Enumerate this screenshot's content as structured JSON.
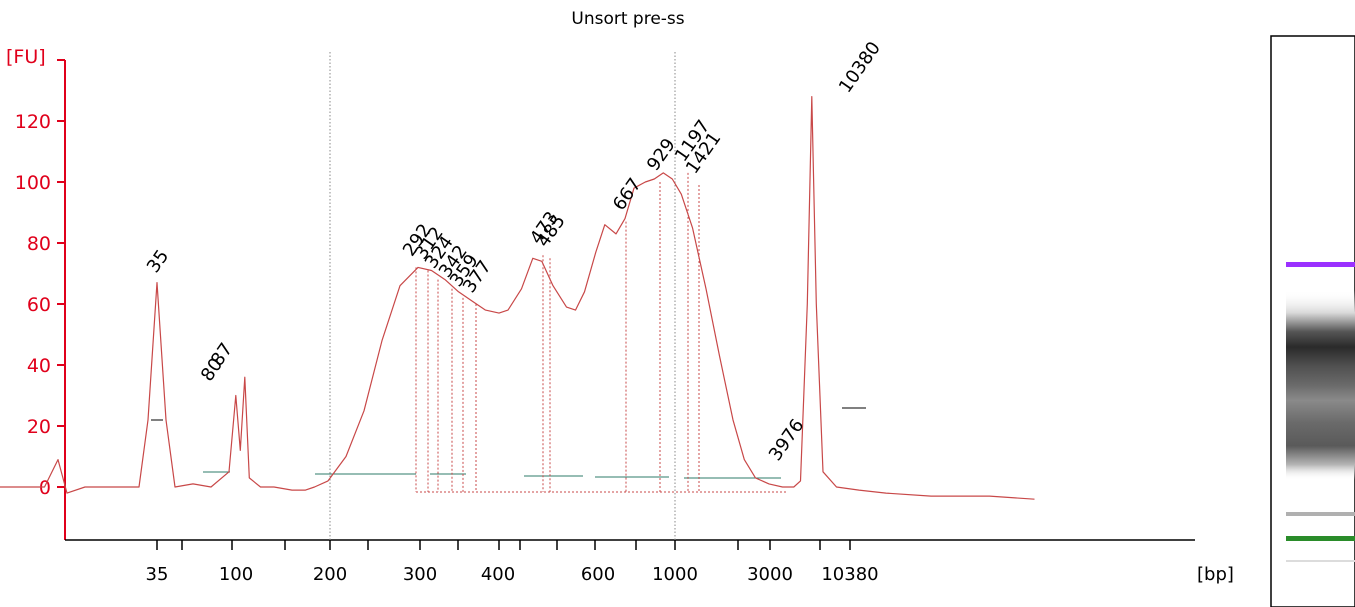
{
  "chart_data": {
    "type": "line",
    "title": "Unsort pre-ss",
    "ylabel": "[FU]",
    "xlabel": "[bp]",
    "ylim": [
      -18,
      142
    ],
    "yticks": [
      0,
      20,
      40,
      60,
      80,
      100,
      120
    ],
    "xtick_labels": [
      "35",
      "100",
      "200",
      "300",
      "400",
      "600",
      "1000",
      "3000",
      "10380"
    ],
    "minor_tick_labels": [],
    "x_axis_position": [
      35,
      15,
      31,
      40,
      50,
      60,
      72,
      82,
      92,
      105,
      115,
      125,
      135,
      145,
      155,
      165,
      180,
      195
    ],
    "peak_labels": [
      {
        "label": "35",
        "size": 35,
        "fu": 67,
        "color": "#1e8c1e"
      },
      {
        "label": "80",
        "size": 80,
        "fu": 31,
        "color": "#000000"
      },
      {
        "label": "87",
        "size": 87,
        "fu": 36,
        "color": "#000000"
      },
      {
        "label": "292",
        "size": 292,
        "fu": 72,
        "color": "#000000"
      },
      {
        "label": "312",
        "size": 312,
        "fu": 71,
        "color": "#000000"
      },
      {
        "label": "324",
        "size": 324,
        "fu": 68,
        "color": "#000000"
      },
      {
        "label": "342",
        "size": 342,
        "fu": 65,
        "color": "#000000"
      },
      {
        "label": "359",
        "size": 359,
        "fu": 62,
        "color": "#000000"
      },
      {
        "label": "377",
        "size": 377,
        "fu": 60,
        "color": "#000000"
      },
      {
        "label": "473",
        "size": 473,
        "fu": 76,
        "color": "#000000"
      },
      {
        "label": "485",
        "size": 485,
        "fu": 75,
        "color": "#000000"
      },
      {
        "label": "667",
        "size": 667,
        "fu": 87,
        "color": "#000000"
      },
      {
        "label": "929",
        "size": 929,
        "fu": 100,
        "color": "#000000"
      },
      {
        "label": "1197",
        "size": 1197,
        "fu": 103,
        "color": "#000000"
      },
      {
        "label": "1421",
        "size": 1421,
        "fu": 99,
        "color": "#000000"
      },
      {
        "label": "3976",
        "size": 3976,
        "fu": 5,
        "color": "#000000"
      },
      {
        "label": "10380",
        "size": 10380,
        "fu": 128,
        "color": "#9b30ff"
      }
    ],
    "series": [
      {
        "trace_points": [
          [
            -3.5,
            0
          ],
          [
            -2.5,
            0
          ],
          [
            -2.2,
            9
          ],
          [
            -2.0,
            -2
          ],
          [
            -1.6,
            0
          ],
          [
            -0.8,
            0
          ],
          [
            -0.4,
            0
          ],
          [
            -0.2,
            22
          ],
          [
            0,
            67
          ],
          [
            0.2,
            22
          ],
          [
            0.4,
            0
          ],
          [
            0.8,
            1
          ],
          [
            1.2,
            0
          ],
          [
            1.6,
            5
          ],
          [
            1.75,
            30
          ],
          [
            1.85,
            12
          ],
          [
            1.95,
            36
          ],
          [
            2.05,
            3
          ],
          [
            2.3,
            0
          ],
          [
            2.6,
            0
          ],
          [
            3.0,
            -1
          ],
          [
            3.3,
            -1
          ],
          [
            3.5,
            0
          ],
          [
            3.8,
            2
          ],
          [
            4.2,
            10
          ],
          [
            4.6,
            25
          ],
          [
            5.0,
            48
          ],
          [
            5.4,
            66
          ],
          [
            5.8,
            72
          ],
          [
            6.1,
            71
          ],
          [
            6.4,
            68
          ],
          [
            6.7,
            64
          ],
          [
            7.0,
            61
          ],
          [
            7.3,
            58
          ],
          [
            7.6,
            57
          ],
          [
            7.8,
            58
          ],
          [
            8.1,
            65
          ],
          [
            8.35,
            75
          ],
          [
            8.55,
            74
          ],
          [
            8.8,
            66
          ],
          [
            9.1,
            59
          ],
          [
            9.3,
            58
          ],
          [
            9.5,
            64
          ],
          [
            9.75,
            77
          ],
          [
            9.95,
            86
          ],
          [
            10.2,
            83
          ],
          [
            10.4,
            88
          ],
          [
            10.6,
            98
          ],
          [
            10.85,
            100
          ],
          [
            11.05,
            101
          ],
          [
            11.25,
            103
          ],
          [
            11.45,
            101
          ],
          [
            11.65,
            96
          ],
          [
            11.9,
            85
          ],
          [
            12.2,
            65
          ],
          [
            12.5,
            43
          ],
          [
            12.8,
            22
          ],
          [
            13.05,
            9
          ],
          [
            13.3,
            3
          ],
          [
            13.6,
            1
          ],
          [
            13.9,
            0
          ],
          [
            14.15,
            0
          ],
          [
            14.3,
            2
          ],
          [
            14.45,
            60
          ],
          [
            14.55,
            128
          ],
          [
            14.65,
            60
          ],
          [
            14.8,
            5
          ],
          [
            15.1,
            0
          ],
          [
            15.6,
            -1
          ],
          [
            16.2,
            -2
          ],
          [
            17.2,
            -3
          ],
          [
            18.5,
            -3
          ],
          [
            19.5,
            -4
          ]
        ]
      }
    ],
    "line_color": "#c84848",
    "grid": false
  },
  "gel": {
    "frame": {
      "x": 1271,
      "y": 36,
      "w": 84,
      "h": 571
    },
    "bands": [
      {
        "y": 262,
        "h": 5,
        "color": "#9b30ff"
      },
      {
        "y": 536,
        "h": 5,
        "color": "#2a8c2a"
      }
    ],
    "smear": [
      {
        "y": 290,
        "h": 190
      }
    ],
    "faint": [
      {
        "y": 512,
        "h": 4
      }
    ]
  }
}
